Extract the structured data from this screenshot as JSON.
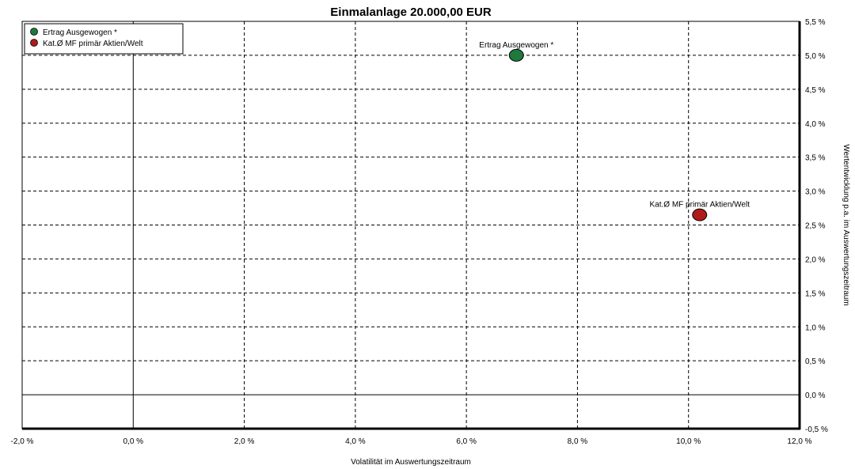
{
  "chart_data": {
    "type": "scatter",
    "title": "Einmalanlage 20.000,00 EUR",
    "xlabel": "Volatilität im Auswertungszeitraum",
    "ylabel": "Wertentwicklung p.a. im Auswertungszeitraum",
    "xlim": [
      -2.0,
      12.0
    ],
    "ylim": [
      -0.5,
      5.5
    ],
    "x_ticks": [
      -2,
      0,
      2,
      4,
      6,
      8,
      10,
      12
    ],
    "x_tick_labels": [
      "-2,0 %",
      "0,0 %",
      "2,0 %",
      "4,0 %",
      "6,0 %",
      "8,0 %",
      "10,0 %",
      "12,0 %"
    ],
    "y_ticks": [
      -0.5,
      0,
      0.5,
      1,
      1.5,
      2,
      2.5,
      3,
      3.5,
      4,
      4.5,
      5,
      5.5
    ],
    "y_tick_labels": [
      "-0,5 %",
      "0,0 %",
      "0,5 %",
      "1,0 %",
      "1,5 %",
      "2,0 %",
      "2,5 %",
      "3,0 %",
      "3,5 %",
      "4,0 %",
      "4,5 %",
      "5,0 %",
      "5,5 %"
    ],
    "grid": true,
    "legend_position": "top-left",
    "series": [
      {
        "name": "Ertrag Ausgewogen  *",
        "x": 6.9,
        "y": 5.0,
        "color": "#1e7a3c"
      },
      {
        "name": "Kat.Ø MF primär Aktien/Welt",
        "x": 10.2,
        "y": 2.65,
        "color": "#b11a1a"
      }
    ]
  }
}
